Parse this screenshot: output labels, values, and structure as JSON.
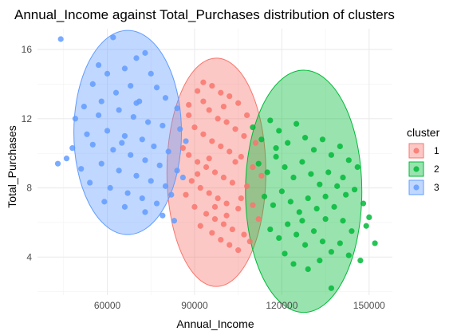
{
  "chart_data": {
    "type": "scatter",
    "title": "Annual_Income against Total_Purchases distribution of clusters",
    "xlabel": "Annual_Income",
    "ylabel": "Total_Purchases",
    "xlim": [
      36000,
      158000
    ],
    "ylim": [
      1.8,
      17.2
    ],
    "x_ticks": [
      60000,
      90000,
      120000,
      150000
    ],
    "y_ticks": [
      4,
      8,
      12,
      16
    ],
    "grid": true,
    "legend": {
      "title": "cluster",
      "position": "right"
    },
    "series": [
      {
        "name": "1",
        "color": "#F8766D",
        "ellipse": {
          "cx": 97500,
          "cy": 8.9,
          "rx": 17000,
          "ry": 6.6
        },
        "points": [
          [
            86000,
            10.3
          ],
          [
            88000,
            12.8
          ],
          [
            91000,
            13.6
          ],
          [
            93000,
            14.1
          ],
          [
            96000,
            13.9
          ],
          [
            99000,
            13.5
          ],
          [
            102000,
            13.3
          ],
          [
            105000,
            12.9
          ],
          [
            95000,
            12.5
          ],
          [
            98000,
            12.0
          ],
          [
            101000,
            11.8
          ],
          [
            104000,
            11.4
          ],
          [
            107000,
            11.0
          ],
          [
            90000,
            11.5
          ],
          [
            93000,
            11.1
          ],
          [
            96000,
            10.7
          ],
          [
            99000,
            10.4
          ],
          [
            102000,
            10.1
          ],
          [
            106000,
            9.8
          ],
          [
            88000,
            9.9
          ],
          [
            91000,
            9.5
          ],
          [
            94000,
            9.2
          ],
          [
            97000,
            8.9
          ],
          [
            100000,
            8.6
          ],
          [
            103000,
            8.3
          ],
          [
            108000,
            8.1
          ],
          [
            89000,
            8.4
          ],
          [
            92000,
            8.0
          ],
          [
            95000,
            7.7
          ],
          [
            98000,
            7.4
          ],
          [
            101000,
            7.1
          ],
          [
            105000,
            6.8
          ],
          [
            110000,
            7.0
          ],
          [
            90000,
            6.9
          ],
          [
            94000,
            6.5
          ],
          [
            97000,
            6.2
          ],
          [
            100000,
            5.9
          ],
          [
            103000,
            5.6
          ],
          [
            107000,
            5.3
          ],
          [
            92000,
            5.8
          ],
          [
            96000,
            5.4
          ],
          [
            99000,
            5.0
          ],
          [
            102000,
            4.7
          ],
          [
            105000,
            4.4
          ],
          [
            109000,
            4.9
          ],
          [
            112000,
            6.2
          ],
          [
            113000,
            8.7
          ],
          [
            111000,
            10.6
          ],
          [
            87000,
            7.6
          ],
          [
            100000,
            12.7
          ],
          [
            95000,
            9.7
          ],
          [
            104000,
            9.5
          ],
          [
            108000,
            12.2
          ],
          [
            93000,
            13.0
          ],
          [
            97000,
            6.9
          ],
          [
            101000,
            6.4
          ],
          [
            106000,
            7.4
          ],
          [
            110000,
            9.2
          ],
          [
            88000,
            12.2
          ],
          [
            91000,
            8.8
          ]
        ]
      },
      {
        "name": "2",
        "color": "#00BA38",
        "ellipse": {
          "cx": 127500,
          "cy": 7.8,
          "rx": 20000,
          "ry": 7.0
        },
        "points": [
          [
            110000,
            11.5
          ],
          [
            113000,
            10.8
          ],
          [
            116000,
            11.9
          ],
          [
            119000,
            11.3
          ],
          [
            122000,
            10.6
          ],
          [
            125000,
            11.7
          ],
          [
            128000,
            10.9
          ],
          [
            131000,
            10.2
          ],
          [
            134000,
            10.8
          ],
          [
            137000,
            9.9
          ],
          [
            140000,
            10.4
          ],
          [
            143000,
            9.6
          ],
          [
            146000,
            9.2
          ],
          [
            112000,
            9.4
          ],
          [
            115000,
            8.9
          ],
          [
            118000,
            9.8
          ],
          [
            121000,
            9.2
          ],
          [
            124000,
            8.6
          ],
          [
            127000,
            9.5
          ],
          [
            130000,
            8.8
          ],
          [
            133000,
            8.2
          ],
          [
            136000,
            8.9
          ],
          [
            139000,
            8.1
          ],
          [
            142000,
            7.6
          ],
          [
            145000,
            7.9
          ],
          [
            148000,
            7.1
          ],
          [
            114000,
            7.5
          ],
          [
            117000,
            7.0
          ],
          [
            120000,
            7.8
          ],
          [
            123000,
            7.2
          ],
          [
            126000,
            6.6
          ],
          [
            129000,
            7.4
          ],
          [
            132000,
            6.8
          ],
          [
            135000,
            6.2
          ],
          [
            138000,
            6.9
          ],
          [
            141000,
            6.1
          ],
          [
            144000,
            5.5
          ],
          [
            149000,
            5.8
          ],
          [
            116000,
            5.6
          ],
          [
            119000,
            5.1
          ],
          [
            122000,
            5.9
          ],
          [
            125000,
            5.3
          ],
          [
            128000,
            4.7
          ],
          [
            131000,
            5.5
          ],
          [
            134000,
            4.9
          ],
          [
            137000,
            4.3
          ],
          [
            140000,
            4.8
          ],
          [
            143000,
            4.1
          ],
          [
            147000,
            3.8
          ],
          [
            124000,
            3.6
          ],
          [
            129000,
            3.3
          ],
          [
            133000,
            3.8
          ],
          [
            137000,
            2.2
          ],
          [
            152000,
            4.8
          ],
          [
            150000,
            6.3
          ],
          [
            121000,
            4.2
          ],
          [
            127000,
            6.1
          ],
          [
            135000,
            7.5
          ],
          [
            141000,
            8.6
          ],
          [
            118000,
            10.3
          ]
        ]
      },
      {
        "name": "3",
        "color": "#619CFF",
        "ellipse": {
          "cx": 67000,
          "cy": 11.2,
          "rx": 18500,
          "ry": 5.9
        },
        "points": [
          [
            44000,
            16.6
          ],
          [
            62000,
            16.7
          ],
          [
            70000,
            15.5
          ],
          [
            73000,
            15.8
          ],
          [
            66000,
            14.9
          ],
          [
            60000,
            14.6
          ],
          [
            55000,
            14.0
          ],
          [
            75000,
            14.6
          ],
          [
            77000,
            13.8
          ],
          [
            68000,
            13.9
          ],
          [
            63000,
            13.5
          ],
          [
            58000,
            13.0
          ],
          [
            52000,
            12.7
          ],
          [
            71000,
            13.0
          ],
          [
            80000,
            13.2
          ],
          [
            84000,
            12.6
          ],
          [
            49000,
            12.0
          ],
          [
            57000,
            12.2
          ],
          [
            64000,
            12.5
          ],
          [
            69000,
            12.1
          ],
          [
            74000,
            11.8
          ],
          [
            79000,
            11.6
          ],
          [
            85000,
            11.4
          ],
          [
            87000,
            10.7
          ],
          [
            53000,
            11.1
          ],
          [
            60000,
            11.3
          ],
          [
            66000,
            11.0
          ],
          [
            72000,
            10.8
          ],
          [
            76000,
            10.4
          ],
          [
            81000,
            10.1
          ],
          [
            48000,
            10.3
          ],
          [
            55000,
            10.5
          ],
          [
            62000,
            10.2
          ],
          [
            68000,
            9.9
          ],
          [
            73000,
            9.6
          ],
          [
            78000,
            9.3
          ],
          [
            84000,
            9.0
          ],
          [
            43000,
            9.4
          ],
          [
            46000,
            9.7
          ],
          [
            51000,
            9.1
          ],
          [
            58000,
            9.4
          ],
          [
            64000,
            9.0
          ],
          [
            70000,
            8.7
          ],
          [
            75000,
            8.4
          ],
          [
            80000,
            8.1
          ],
          [
            86000,
            8.6
          ],
          [
            54000,
            8.3
          ],
          [
            61000,
            8.0
          ],
          [
            67000,
            7.7
          ],
          [
            72000,
            7.4
          ],
          [
            77000,
            7.1
          ],
          [
            82000,
            7.6
          ],
          [
            59000,
            7.2
          ],
          [
            66000,
            6.9
          ],
          [
            73000,
            6.6
          ],
          [
            79000,
            6.4
          ],
          [
            83000,
            6.1
          ],
          [
            70000,
            12.9
          ],
          [
            65000,
            10.6
          ],
          [
            57000,
            15.1
          ]
        ]
      }
    ]
  }
}
